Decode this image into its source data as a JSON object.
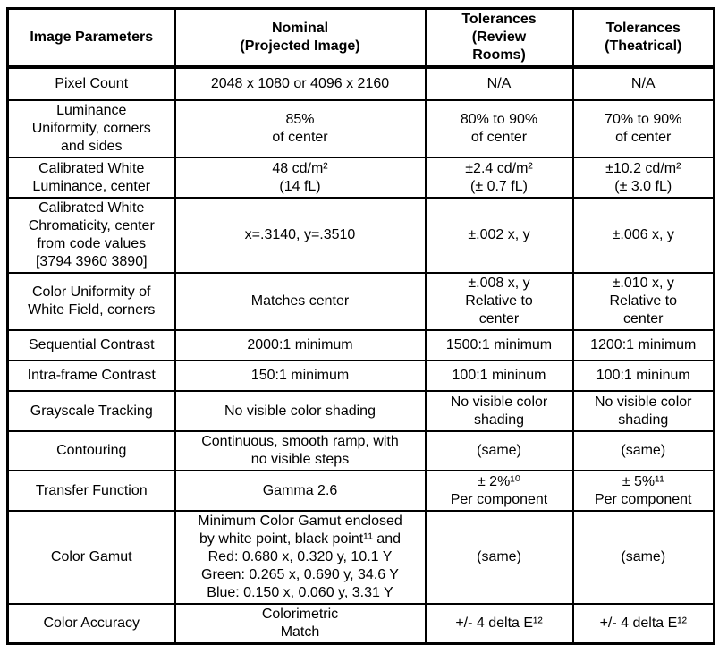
{
  "table": {
    "headers": [
      "Image Parameters",
      "Nominal\n(Projected Image)",
      "Tolerances\n(Review\nRooms)",
      "Tolerances\n(Theatrical)"
    ],
    "rows": [
      {
        "param": "Pixel Count",
        "nominal": "2048 x 1080 or 4096 x 2160",
        "review": "N/A",
        "theatrical": "N/A"
      },
      {
        "param": "Luminance\nUniformity, corners\nand sides",
        "nominal": "85%\nof center",
        "review": "80% to 90%\nof center",
        "theatrical": "70% to 90%\nof center"
      },
      {
        "param": "Calibrated White\nLuminance, center",
        "nominal": "48 cd/m²\n(14 fL)",
        "review": "±2.4 cd/m²\n(± 0.7 fL)",
        "theatrical": "±10.2 cd/m²\n(± 3.0 fL)"
      },
      {
        "param": "Calibrated White\nChromaticity, center\nfrom code values\n[3794 3960 3890]",
        "nominal": "x=.3140, y=.3510",
        "review": "±.002 x, y",
        "theatrical": "±.006 x, y"
      },
      {
        "param": "Color Uniformity of\nWhite Field, corners",
        "nominal": "Matches center",
        "review": "±.008 x, y\nRelative to\ncenter",
        "theatrical": "±.010 x, y\nRelative to\ncenter"
      },
      {
        "param": "Sequential Contrast",
        "nominal": "2000:1 minimum",
        "review": "1500:1 minimum",
        "theatrical": "1200:1 minimum"
      },
      {
        "param": "Intra-frame Contrast",
        "nominal": "150:1 minimum",
        "review": "100:1 mininum",
        "theatrical": "100:1 mininum"
      },
      {
        "param": "Grayscale Tracking",
        "nominal": "No visible color shading",
        "review": "No visible color\nshading",
        "theatrical": "No visible color\nshading"
      },
      {
        "param": "Contouring",
        "nominal": "Continuous, smooth ramp, with\nno visible steps",
        "review": "(same)",
        "theatrical": "(same)"
      },
      {
        "param": "Transfer Function",
        "nominal": "Gamma 2.6",
        "review": "± 2%¹⁰\nPer component",
        "theatrical": "± 5%¹¹\nPer component"
      },
      {
        "param": "Color Gamut",
        "nominal": "Minimum Color Gamut enclosed\nby white point, black point¹¹ and\nRed: 0.680 x, 0.320 y, 10.1 Y\nGreen: 0.265 x, 0.690 y, 34.6 Y\nBlue: 0.150 x, 0.060 y, 3.31 Y",
        "review": "(same)",
        "theatrical": "(same)"
      },
      {
        "param": "Color Accuracy",
        "nominal": "Colorimetric\nMatch",
        "review": "+/- 4 delta E¹²",
        "theatrical": "+/- 4 delta E¹²"
      }
    ]
  }
}
